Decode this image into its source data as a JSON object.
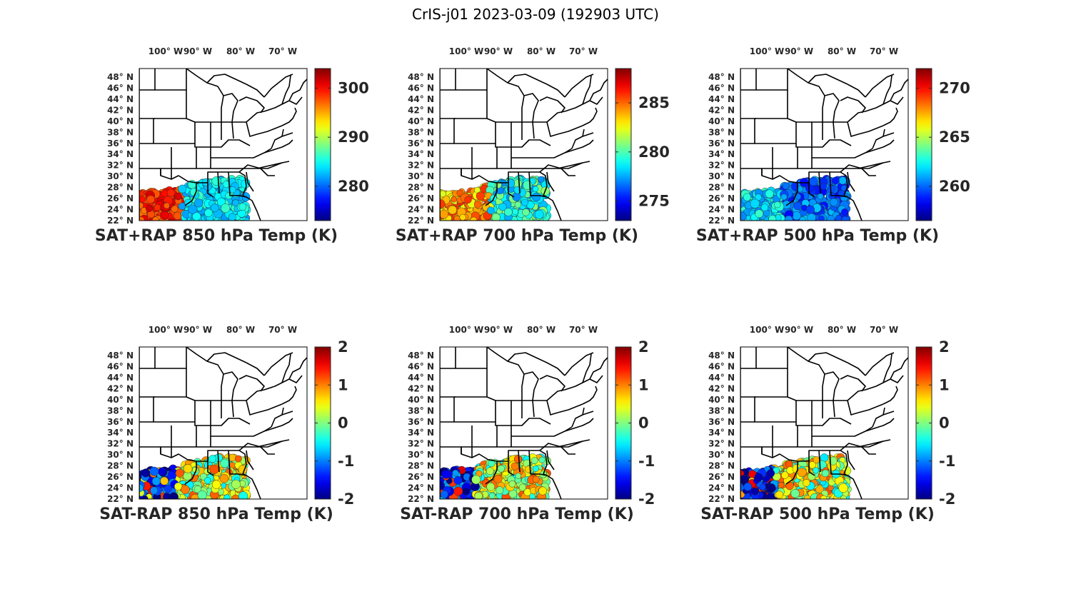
{
  "figure_title": "CrIS-j01 2023-03-09 (192903 UTC)",
  "lon_ticks": [
    "100° W",
    "90° W",
    "80° W",
    "70° W"
  ],
  "lat_ticks": [
    "48° N",
    "46° N",
    "44° N",
    "42° N",
    "40° N",
    "38° N",
    "36° N",
    "34° N",
    "32° N",
    "30° N",
    "28° N",
    "26° N",
    "24° N",
    "22° N"
  ],
  "colormap": "jet",
  "panels": [
    {
      "title": "SAT+RAP 850 hPa Temp (K)",
      "cbar_ticks": [
        "300",
        "290",
        "280"
      ],
      "clim": [
        273,
        304
      ]
    },
    {
      "title": "SAT+RAP 700 hPa Temp (K)",
      "cbar_ticks": [
        "285",
        "280",
        "275"
      ],
      "clim": [
        273,
        288.5
      ]
    },
    {
      "title": "SAT+RAP 500 hPa Temp (K)",
      "cbar_ticks": [
        "270",
        "265",
        "260"
      ],
      "clim": [
        256.5,
        272
      ]
    },
    {
      "title": "SAT-RAP 850 hPa Temp (K)",
      "cbar_ticks": [
        "2",
        "1",
        "0",
        "-1",
        "-2"
      ],
      "clim": [
        -2,
        2
      ]
    },
    {
      "title": "SAT-RAP 700 hPa Temp (K)",
      "cbar_ticks": [
        "2",
        "1",
        "0",
        "-1",
        "-2"
      ],
      "clim": [
        -2,
        2
      ]
    },
    {
      "title": "SAT-RAP 500 hPa Temp (K)",
      "cbar_ticks": [
        "2",
        "1",
        "0",
        "-1",
        "-2"
      ],
      "clim": [
        -2,
        2
      ]
    }
  ]
}
